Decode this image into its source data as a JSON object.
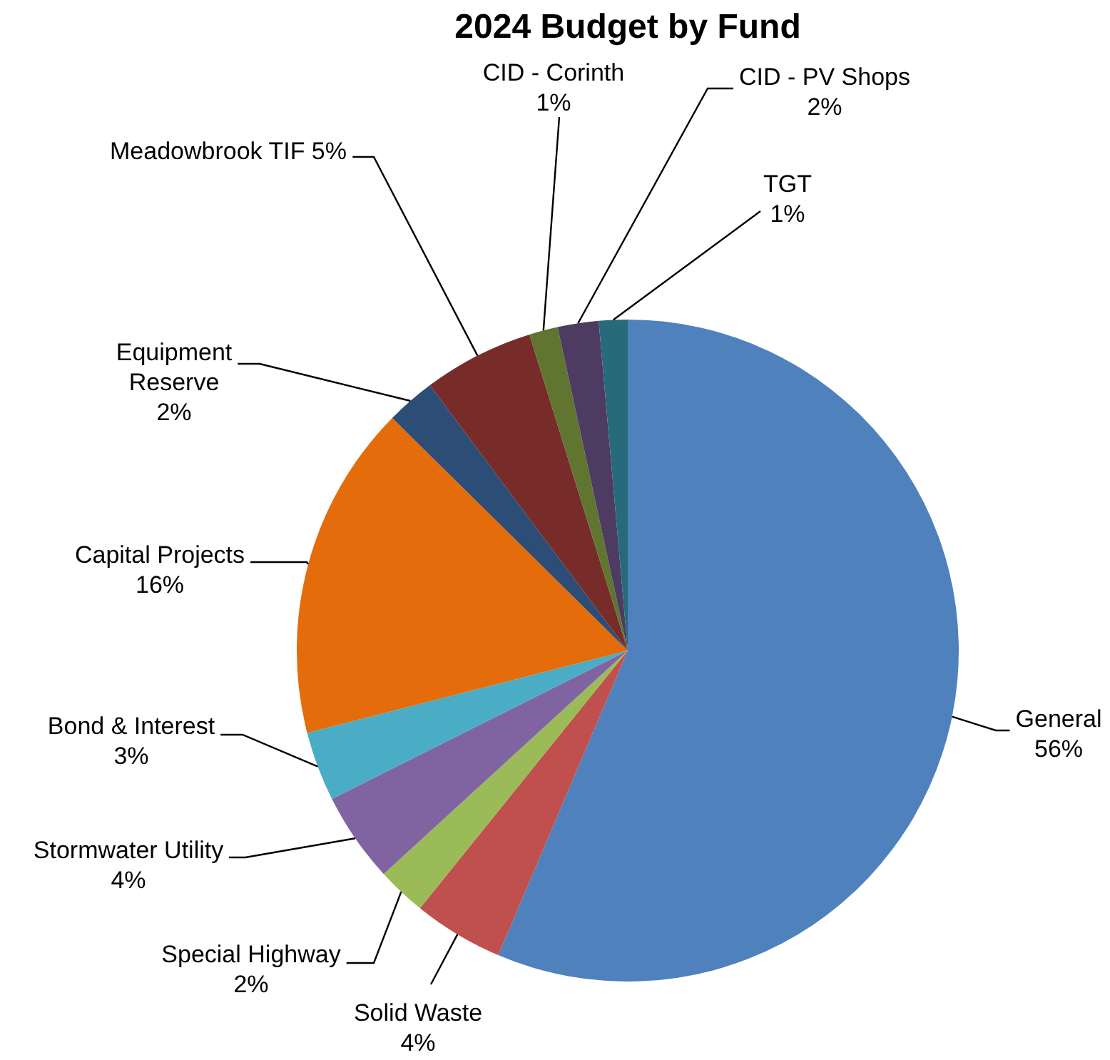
{
  "chart_data": {
    "type": "pie",
    "title": "2024 Budget by Fund",
    "categories": [
      "General",
      "Solid Waste",
      "Special Highway",
      "Stormwater Utility",
      "Bond & Interest",
      "Capital Projects",
      "Equipment Reserve",
      "Meadowbrook TIF",
      "CID - Corinth",
      "CID - PV Shops",
      "TGT"
    ],
    "values": [
      56.4,
      4.4,
      2.4,
      4.4,
      3.4,
      16.4,
      2.4,
      5.4,
      1.4,
      2.0,
      1.4
    ],
    "value_labels": [
      "56%",
      "4%",
      "2%",
      "4%",
      "3%",
      "16%",
      "2%",
      "5%",
      "1%",
      "2%",
      "1%"
    ],
    "colors": [
      "#4f81bd",
      "#c0504d",
      "#9bbb59",
      "#8064a2",
      "#4bacc6",
      "#e46c0a",
      "#2c4d75",
      "#772c2a",
      "#5f7530",
      "#4d3b62",
      "#276a7c"
    ],
    "legend": false
  }
}
